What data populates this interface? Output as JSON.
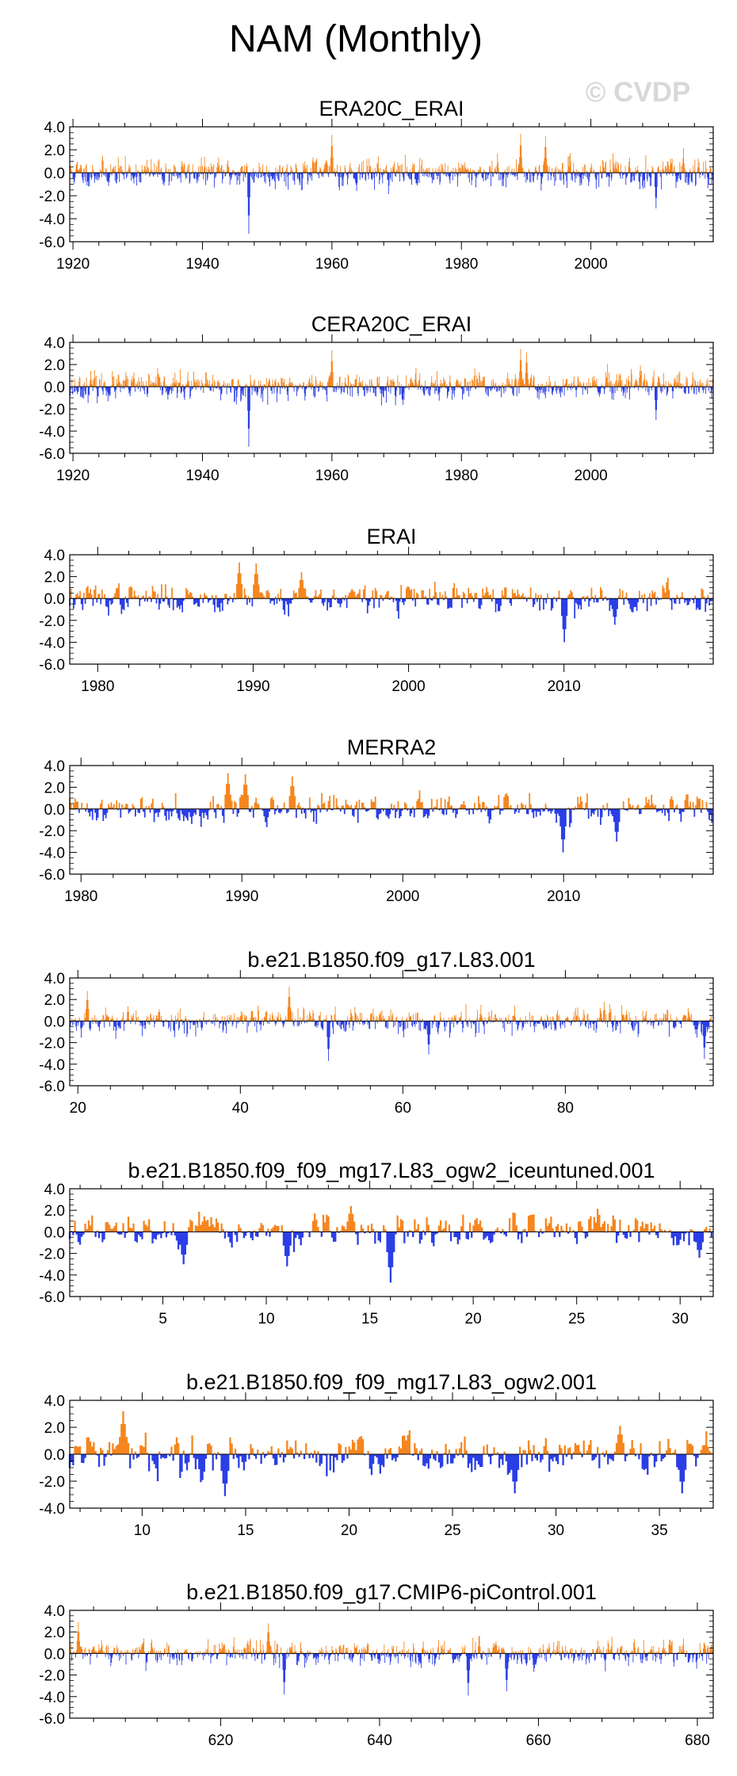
{
  "figure": {
    "title": "NAM (Monthly)",
    "watermark": "© CVDP"
  },
  "colors": {
    "positive": "#f5861f",
    "negative": "#2a3ee6",
    "axis": "#000000",
    "watermark": "#d8d8d8"
  },
  "chart_data": [
    {
      "type": "area",
      "title": "ERA20C_ERAI",
      "ylim": [
        -6.0,
        4.0
      ],
      "yticks": [
        "4.0",
        "2.0",
        "0.0",
        "-2.0",
        "-4.0",
        "-6.0"
      ],
      "xlim": [
        1919.5,
        2018.9
      ],
      "xticks": [
        1920,
        1940,
        1960,
        1980,
        2000
      ],
      "xtick_labels": [
        "1920",
        "1940",
        "1960",
        "1980",
        "2000"
      ],
      "extreme_events": [
        {
          "x": 1947.2,
          "y": -5.3
        },
        {
          "x": 1960.0,
          "y": 3.3
        },
        {
          "x": 1989.2,
          "y": 3.4
        },
        {
          "x": 1993.0,
          "y": 3.2
        },
        {
          "x": 2010.1,
          "y": -3.1
        }
      ],
      "seed": 11,
      "amplitude": 1.0
    },
    {
      "type": "area",
      "title": "CERA20C_ERAI",
      "ylim": [
        -6.0,
        4.0
      ],
      "yticks": [
        "4.0",
        "2.0",
        "0.0",
        "-2.0",
        "-4.0",
        "-6.0"
      ],
      "xlim": [
        1919.5,
        2018.9
      ],
      "xticks": [
        1920,
        1940,
        1960,
        1980,
        2000
      ],
      "xtick_labels": [
        "1920",
        "1940",
        "1960",
        "1980",
        "2000"
      ],
      "extreme_events": [
        {
          "x": 1947.2,
          "y": -5.4
        },
        {
          "x": 1960.0,
          "y": 3.3
        },
        {
          "x": 1989.2,
          "y": 3.4
        },
        {
          "x": 1990.1,
          "y": 3.1
        },
        {
          "x": 2010.1,
          "y": -3.0
        }
      ],
      "seed": 23,
      "amplitude": 1.0
    },
    {
      "type": "area",
      "title": "ERAI",
      "ylim": [
        -6.0,
        4.0
      ],
      "yticks": [
        "4.0",
        "2.0",
        "0.0",
        "-2.0",
        "-4.0",
        "-6.0"
      ],
      "xlim": [
        1978.2,
        2019.6
      ],
      "xticks": [
        1980,
        1990,
        2000,
        2010
      ],
      "xtick_labels": [
        "1980",
        "1990",
        "2000",
        "2010"
      ],
      "extreme_events": [
        {
          "x": 1989.1,
          "y": 3.3
        },
        {
          "x": 1990.2,
          "y": 3.2
        },
        {
          "x": 1993.1,
          "y": 2.4
        },
        {
          "x": 2010.0,
          "y": -4.0
        },
        {
          "x": 2013.3,
          "y": -2.4
        }
      ],
      "seed": 37,
      "amplitude": 1.1
    },
    {
      "type": "area",
      "title": "MERRA2",
      "ylim": [
        -6.0,
        4.0
      ],
      "yticks": [
        "4.0",
        "2.0",
        "0.0",
        "-2.0",
        "-4.0",
        "-6.0"
      ],
      "xlim": [
        1979.3,
        2019.3
      ],
      "xticks": [
        1980,
        1990,
        2000,
        2010
      ],
      "xtick_labels": [
        "1980",
        "1990",
        "2000",
        "2010"
      ],
      "extreme_events": [
        {
          "x": 1989.1,
          "y": 3.3
        },
        {
          "x": 1990.2,
          "y": 3.2
        },
        {
          "x": 1993.1,
          "y": 3.0
        },
        {
          "x": 2010.0,
          "y": -4.0
        },
        {
          "x": 2013.3,
          "y": -3.0
        }
      ],
      "seed": 41,
      "amplitude": 1.1
    },
    {
      "type": "area",
      "title": "b.e21.B1850.f09_g17.L83.001",
      "ylim": [
        -6.0,
        4.0
      ],
      "yticks": [
        "4.0",
        "2.0",
        "0.0",
        "-2.0",
        "-4.0",
        "-6.0"
      ],
      "xlim": [
        19.0,
        98.2
      ],
      "xticks": [
        20,
        40,
        60,
        80
      ],
      "xtick_labels": [
        "20",
        "40",
        "60",
        "80"
      ],
      "extreme_events": [
        {
          "x": 21.2,
          "y": 2.8
        },
        {
          "x": 46.0,
          "y": 3.2
        },
        {
          "x": 50.8,
          "y": -3.7
        },
        {
          "x": 63.2,
          "y": -3.1
        },
        {
          "x": 97.1,
          "y": -3.5
        }
      ],
      "seed": 53,
      "amplitude": 1.0
    },
    {
      "type": "area",
      "title": "b.e21.B1850.f09_f09_mg17.L83_ogw2_iceuntuned.001",
      "ylim": [
        -6.0,
        4.0
      ],
      "yticks": [
        "4.0",
        "2.0",
        "0.0",
        "-2.0",
        "-4.0",
        "-6.0"
      ],
      "xlim": [
        0.5,
        31.6
      ],
      "xticks": [
        5,
        10,
        15,
        20,
        25,
        30
      ],
      "xtick_labels": [
        "5",
        "10",
        "15",
        "20",
        "25",
        "30"
      ],
      "extreme_events": [
        {
          "x": 6.0,
          "y": -3.0
        },
        {
          "x": 11.0,
          "y": -3.2
        },
        {
          "x": 14.1,
          "y": 2.4
        },
        {
          "x": 16.0,
          "y": -4.7
        },
        {
          "x": 30.9,
          "y": -2.4
        }
      ],
      "seed": 67,
      "amplitude": 1.2
    },
    {
      "type": "area",
      "title": "b.e21.B1850.f09_f09_mg17.L83_ogw2.001",
      "ylim": [
        -4.0,
        4.0
      ],
      "yticks": [
        "4.0",
        "2.0",
        "0.0",
        "-2.0",
        "-4.0"
      ],
      "xlim": [
        6.5,
        37.6
      ],
      "xticks": [
        10,
        15,
        20,
        25,
        30,
        35
      ],
      "xtick_labels": [
        "10",
        "15",
        "20",
        "25",
        "30",
        "35"
      ],
      "extreme_events": [
        {
          "x": 9.1,
          "y": 3.2
        },
        {
          "x": 14.0,
          "y": -3.1
        },
        {
          "x": 28.0,
          "y": -2.9
        },
        {
          "x": 33.1,
          "y": 2.1
        },
        {
          "x": 36.1,
          "y": -2.9
        }
      ],
      "seed": 79,
      "amplitude": 1.2
    },
    {
      "type": "area",
      "title": "b.e21.B1850.f09_g17.CMIP6-piControl.001",
      "ylim": [
        -6.0,
        4.0
      ],
      "yticks": [
        "4.0",
        "2.0",
        "0.0",
        "-2.0",
        "-4.0",
        "-6.0"
      ],
      "xlim": [
        601.0,
        682.0
      ],
      "xticks": [
        620,
        640,
        660,
        680
      ],
      "xtick_labels": [
        "620",
        "640",
        "660",
        "680"
      ],
      "extreme_events": [
        {
          "x": 602.1,
          "y": 2.9
        },
        {
          "x": 626.0,
          "y": 2.8
        },
        {
          "x": 628.0,
          "y": -3.8
        },
        {
          "x": 651.2,
          "y": -3.9
        },
        {
          "x": 656.0,
          "y": -3.5
        }
      ],
      "seed": 97,
      "amplitude": 1.0
    }
  ]
}
